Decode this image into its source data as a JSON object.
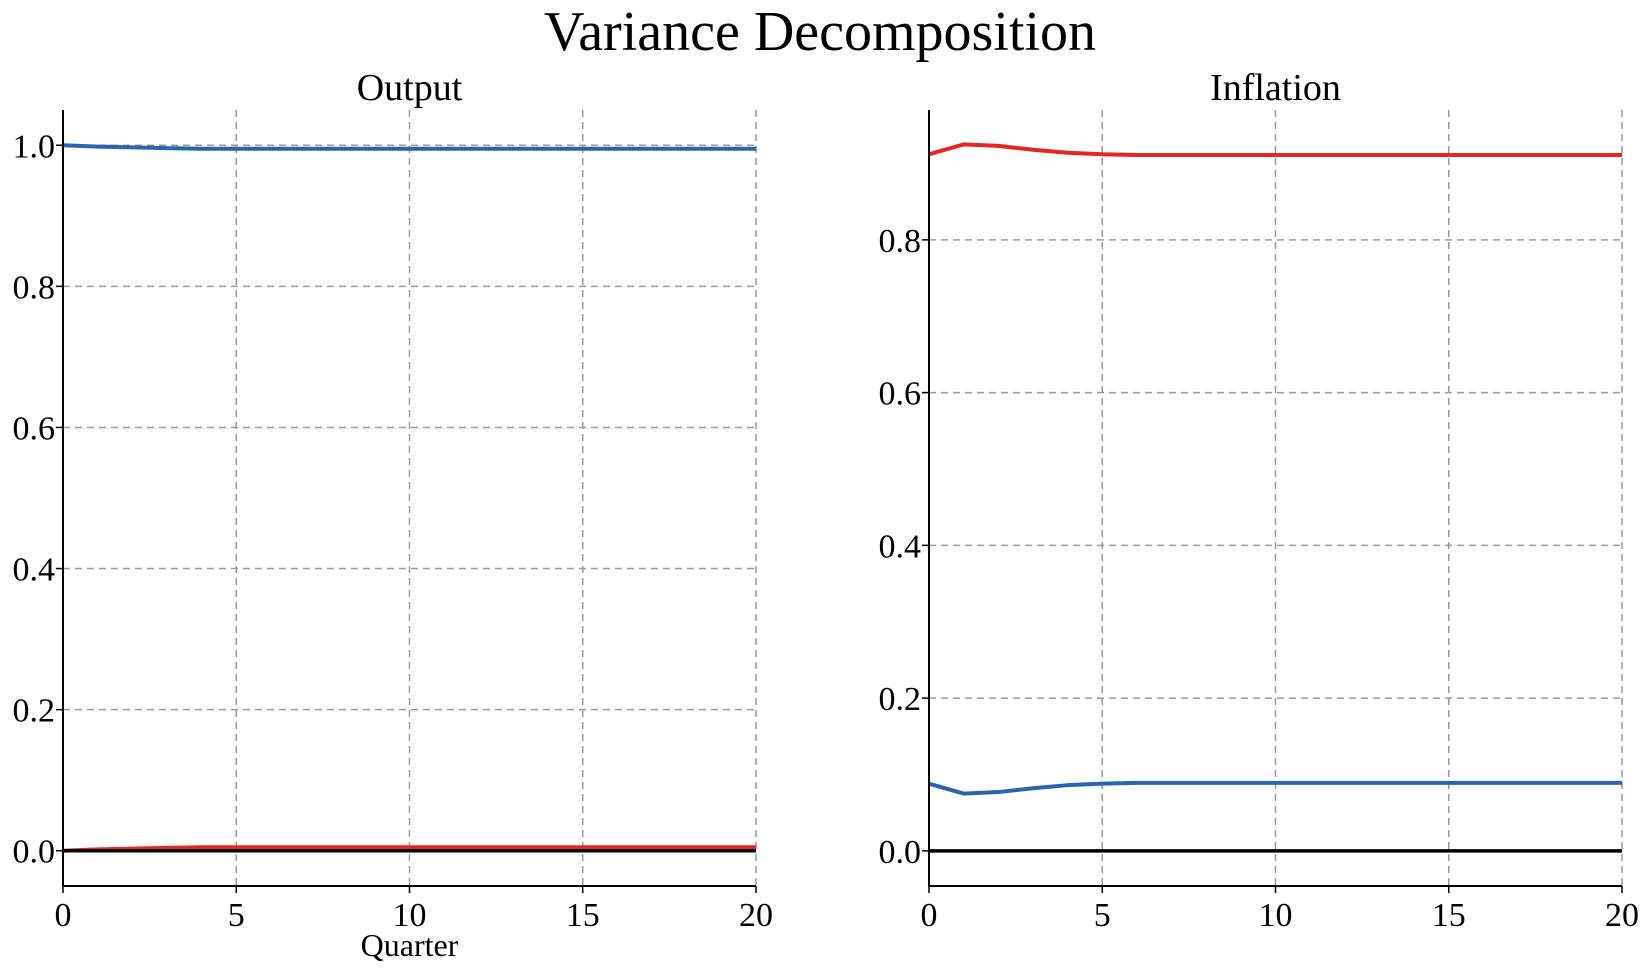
{
  "figure": {
    "title": "Variance Decomposition"
  },
  "colors": {
    "blue": "#2b63ad",
    "red": "#e8251f",
    "zero": "#000000",
    "grid": "#999999"
  },
  "chart_data": [
    {
      "type": "line",
      "title": "Output",
      "xlabel": "Quarter",
      "ylabel": "",
      "xlim": [
        0,
        20
      ],
      "ylim": [
        -0.05,
        1.05
      ],
      "xticks": [
        0,
        5,
        10,
        15,
        20
      ],
      "xtick_labels": [
        "0",
        "5",
        "10",
        "15",
        "20"
      ],
      "yticks": [
        0.0,
        0.2,
        0.4,
        0.6,
        0.8,
        1.0
      ],
      "ytick_labels": [
        "0.0",
        "0.2",
        "0.4",
        "0.6",
        "0.8",
        "1.0"
      ],
      "grid": true,
      "zero_line": true,
      "x": [
        0,
        1,
        2,
        3,
        4,
        5,
        6,
        7,
        8,
        9,
        10,
        11,
        12,
        13,
        14,
        15,
        16,
        17,
        18,
        19,
        20
      ],
      "series": [
        {
          "color": "#2b63ad",
          "values": [
            1.0,
            0.998,
            0.997,
            0.996,
            0.995,
            0.995,
            0.995,
            0.995,
            0.995,
            0.995,
            0.995,
            0.995,
            0.995,
            0.995,
            0.995,
            0.995,
            0.995,
            0.995,
            0.995,
            0.995,
            0.995
          ]
        },
        {
          "color": "#e8251f",
          "values": [
            0.0,
            0.002,
            0.003,
            0.004,
            0.005,
            0.005,
            0.005,
            0.005,
            0.005,
            0.005,
            0.005,
            0.005,
            0.005,
            0.005,
            0.005,
            0.005,
            0.005,
            0.005,
            0.005,
            0.005,
            0.005
          ]
        }
      ]
    },
    {
      "type": "line",
      "title": "Inflation",
      "xlabel": "",
      "ylabel": "",
      "xlim": [
        0,
        20
      ],
      "ylim": [
        -0.046,
        0.97
      ],
      "xticks": [
        0,
        5,
        10,
        15,
        20
      ],
      "xtick_labels": [
        "0",
        "5",
        "10",
        "15",
        "20"
      ],
      "yticks": [
        0.0,
        0.2,
        0.4,
        0.6,
        0.8
      ],
      "ytick_labels": [
        "0.0",
        "0.2",
        "0.4",
        "0.6",
        "0.8"
      ],
      "grid": true,
      "zero_line": true,
      "x": [
        0,
        1,
        2,
        3,
        4,
        5,
        6,
        7,
        8,
        9,
        10,
        11,
        12,
        13,
        14,
        15,
        16,
        17,
        18,
        19,
        20
      ],
      "series": [
        {
          "color": "#e8251f",
          "values": [
            0.912,
            0.925,
            0.923,
            0.918,
            0.914,
            0.912,
            0.911,
            0.911,
            0.911,
            0.911,
            0.911,
            0.911,
            0.911,
            0.911,
            0.911,
            0.911,
            0.911,
            0.911,
            0.911,
            0.911,
            0.911
          ]
        },
        {
          "color": "#2b63ad",
          "values": [
            0.088,
            0.075,
            0.077,
            0.082,
            0.086,
            0.088,
            0.089,
            0.089,
            0.089,
            0.089,
            0.089,
            0.089,
            0.089,
            0.089,
            0.089,
            0.089,
            0.089,
            0.089,
            0.089,
            0.089,
            0.089
          ]
        }
      ]
    }
  ]
}
